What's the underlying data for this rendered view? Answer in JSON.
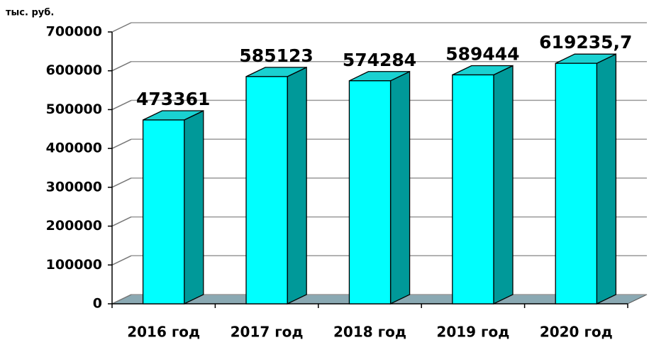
{
  "chart_data": {
    "type": "bar3d",
    "y_label": "тыс. руб.",
    "categories": [
      "2016 год",
      "2017 год",
      "2018 год",
      "2019 год",
      "2020 год"
    ],
    "values": [
      473361,
      585123,
      574284,
      589444,
      619235.7
    ],
    "value_labels": [
      "473361",
      "585123",
      "574284",
      "589444",
      "619235,7"
    ],
    "color": "#00ffff",
    "side_color": "#009999",
    "top_color": "#1ad1d1",
    "ylim": [
      0,
      700000
    ],
    "yticks": [
      0,
      100000,
      200000,
      300000,
      400000,
      500000,
      600000,
      700000
    ],
    "grid": true
  }
}
